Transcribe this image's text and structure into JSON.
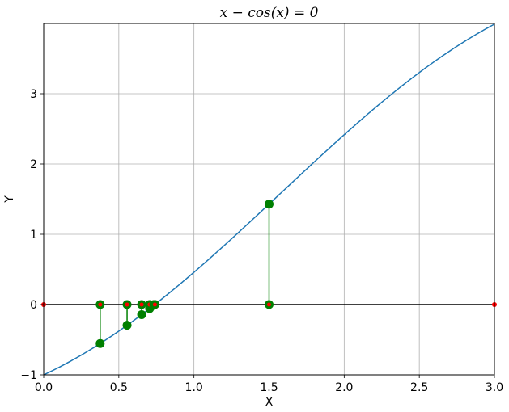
{
  "chart_data": {
    "type": "line",
    "title": "x − cos(x) = 0",
    "xlabel": "X",
    "ylabel": "Y",
    "xlim": [
      0.0,
      3.0
    ],
    "ylim": [
      -1.0,
      4.0
    ],
    "xticks": [
      0.0,
      0.5,
      1.0,
      1.5,
      2.0,
      2.5,
      3.0
    ],
    "xtick_labels": [
      "0.0",
      "0.5",
      "1.0",
      "1.5",
      "2.0",
      "2.5",
      "3.0"
    ],
    "yticks": [
      -1,
      0,
      1,
      2,
      3
    ],
    "ytick_labels": [
      "−1",
      "0",
      "1",
      "2",
      "3"
    ],
    "grid": true,
    "curve": {
      "expression": "x - cos(x)",
      "color": "#1f77b4"
    },
    "zero_line": {
      "y": 0,
      "color": "#000000"
    },
    "bracket_points": {
      "color": "#ff0000",
      "x": [
        0.0,
        3.0
      ]
    },
    "iterations": {
      "color": "#008000",
      "points": [
        {
          "x": 1.5,
          "y": 1.429
        },
        {
          "x": 0.376,
          "y": -0.554
        },
        {
          "x": 0.555,
          "y": -0.295
        },
        {
          "x": 0.652,
          "y": -0.143
        },
        {
          "x": 0.705,
          "y": -0.057
        },
        {
          "x": 0.733,
          "y": -0.01
        },
        {
          "x": 0.74,
          "y": 0.0
        }
      ]
    }
  }
}
